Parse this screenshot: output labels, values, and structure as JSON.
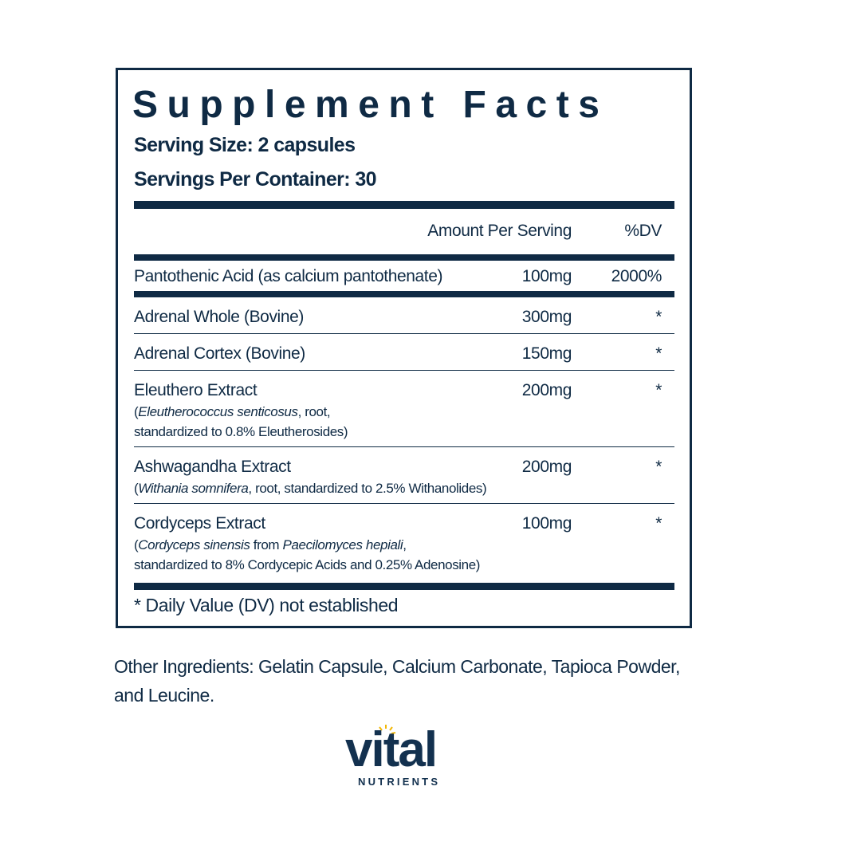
{
  "header": {
    "title": "Supplement Facts",
    "serving_size": "Serving Size: 2 capsules",
    "servings_per_container": "Servings Per Container: 30"
  },
  "columns": {
    "amount": "Amount Per Serving",
    "dv": "%DV"
  },
  "rows": [
    {
      "name": "Pantothenic Acid (as calcium pantothenate)",
      "amount": "100mg",
      "dv": "2000%",
      "description": []
    },
    {
      "name": "Adrenal Whole (Bovine)",
      "amount": "300mg",
      "dv": "*",
      "description": []
    },
    {
      "name": "Adrenal Cortex (Bovine)",
      "amount": "150mg",
      "dv": "*",
      "description": []
    },
    {
      "name": "Eleuthero Extract",
      "amount": "200mg",
      "dv": "*",
      "description": [
        [
          {
            "text": "(",
            "italic": false
          },
          {
            "text": "Eleutherococcus senticosus",
            "italic": true
          },
          {
            "text": ", root,",
            "italic": false
          }
        ],
        [
          {
            "text": "standardized to 0.8% Eleutherosides)",
            "italic": false
          }
        ]
      ]
    },
    {
      "name": "Ashwagandha Extract",
      "amount": "200mg",
      "dv": "*",
      "description": [
        [
          {
            "text": "(",
            "italic": false
          },
          {
            "text": "Withania somnifera",
            "italic": true
          },
          {
            "text": ", root, standardized to 2.5% Withanolides)",
            "italic": false
          }
        ]
      ]
    },
    {
      "name": "Cordyceps Extract",
      "amount": "100mg",
      "dv": "*",
      "description": [
        [
          {
            "text": "(",
            "italic": false
          },
          {
            "text": "Cordyceps sinensis",
            "italic": true
          },
          {
            "text": " from ",
            "italic": false
          },
          {
            "text": "Paecilomyces hepiali",
            "italic": true
          },
          {
            "text": ",",
            "italic": false
          }
        ],
        [
          {
            "text": "standardized to 8% Cordycepic Acids and 0.25% Adenosine)",
            "italic": false
          }
        ]
      ]
    }
  ],
  "footnote": "* Daily Value (DV) not established",
  "other_ingredients": "Other Ingredients: Gelatin Capsule, Calcium Carbonate, Tapioca Powder, and Leucine.",
  "logo": {
    "brand": "vital",
    "tagline": "NUTRIENTS"
  }
}
